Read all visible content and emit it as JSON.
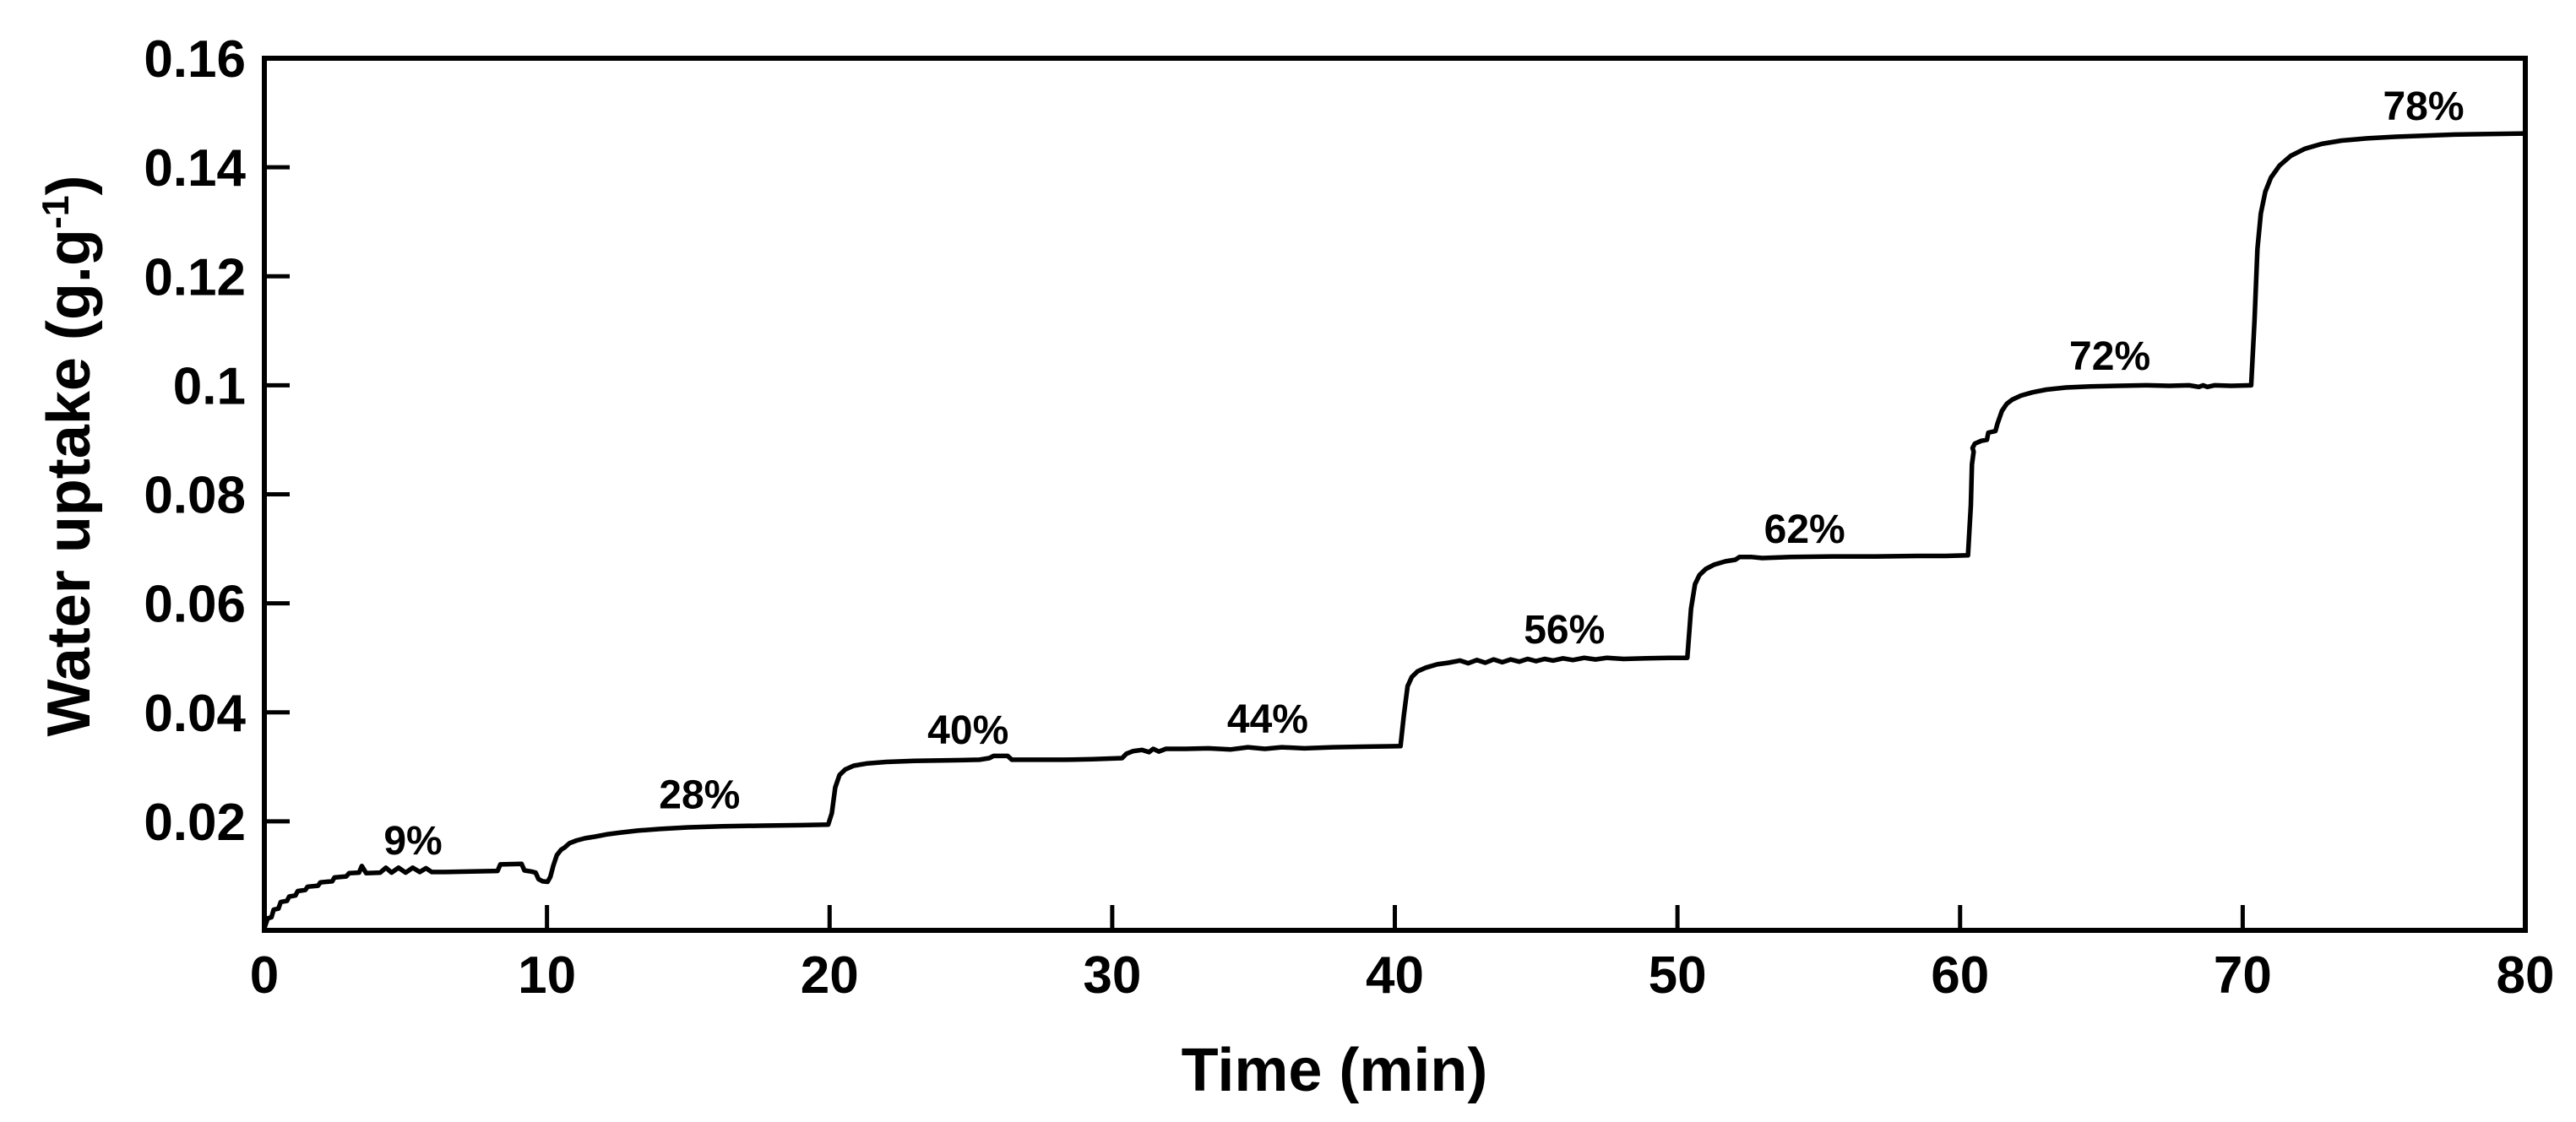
{
  "chart_data": {
    "type": "line",
    "title": "",
    "xlabel": "Time (min)",
    "ylabel_main": "Water uptake (g.g",
    "ylabel_sup": "-1",
    "ylabel_close": ")",
    "xlim": [
      0,
      80
    ],
    "ylim": [
      0,
      0.16
    ],
    "grid": false,
    "legend_position": "none",
    "line_color": "#000000",
    "axis_color": "#000000",
    "background": "#ffffff",
    "x_ticks": [
      {
        "value": 0,
        "label": "0"
      },
      {
        "value": 10,
        "label": "10"
      },
      {
        "value": 20,
        "label": "20"
      },
      {
        "value": 30,
        "label": "30"
      },
      {
        "value": 40,
        "label": "40"
      },
      {
        "value": 50,
        "label": "50"
      },
      {
        "value": 60,
        "label": "60"
      },
      {
        "value": 70,
        "label": "70"
      },
      {
        "value": 80,
        "label": "80"
      }
    ],
    "y_ticks": [
      {
        "value": 0.02,
        "label": "0.02"
      },
      {
        "value": 0.04,
        "label": "0.04"
      },
      {
        "value": 0.06,
        "label": "0.06"
      },
      {
        "value": 0.08,
        "label": "0.08"
      },
      {
        "value": 0.1,
        "label": "0.1"
      },
      {
        "value": 0.12,
        "label": "0.12"
      },
      {
        "value": 0.14,
        "label": "0.14"
      },
      {
        "value": 0.16,
        "label": "0.16"
      }
    ],
    "annotations": [
      {
        "label": "9%",
        "t": 5.26,
        "v": 0.0166
      },
      {
        "label": "28%",
        "t": 15.4,
        "v": 0.025
      },
      {
        "label": "40%",
        "t": 24.9,
        "v": 0.0369
      },
      {
        "label": "44%",
        "t": 35.5,
        "v": 0.0389
      },
      {
        "label": "56%",
        "t": 46.0,
        "v": 0.0553
      },
      {
        "label": "62%",
        "t": 54.5,
        "v": 0.0737
      },
      {
        "label": "72%",
        "t": 65.3,
        "v": 0.1055
      },
      {
        "label": "78%",
        "t": 76.4,
        "v": 0.1513
      }
    ],
    "humidity_step_plateaus": [
      {
        "rh": "9%",
        "time_range": [
          0,
          10
        ],
        "uptake": 0.011
      },
      {
        "rh": "28%",
        "time_range": [
          10,
          20
        ],
        "uptake": 0.0195
      },
      {
        "rh": "40%",
        "time_range": [
          20,
          30
        ],
        "uptake": 0.0313
      },
      {
        "rh": "44%",
        "time_range": [
          30,
          40
        ],
        "uptake": 0.0334
      },
      {
        "rh": "56%",
        "time_range": [
          40,
          50
        ],
        "uptake": 0.0498
      },
      {
        "rh": "62%",
        "time_range": [
          50,
          60
        ],
        "uptake": 0.0685
      },
      {
        "rh": "72%",
        "time_range": [
          60,
          70
        ],
        "uptake": 0.1
      },
      {
        "rh": "78%",
        "time_range": [
          70,
          80
        ],
        "uptake": 0.146
      }
    ],
    "series": [
      {
        "name": "water-uptake-curve",
        "points": [
          [
            0,
            0.0004
          ],
          [
            0.12,
            0.0022
          ],
          [
            0.25,
            0.0024
          ],
          [
            0.33,
            0.0038
          ],
          [
            0.5,
            0.004
          ],
          [
            0.58,
            0.0052
          ],
          [
            0.8,
            0.0054
          ],
          [
            0.88,
            0.0062
          ],
          [
            1.1,
            0.0064
          ],
          [
            1.18,
            0.0072
          ],
          [
            1.45,
            0.0074
          ],
          [
            1.53,
            0.008
          ],
          [
            1.9,
            0.0082
          ],
          [
            1.98,
            0.0088
          ],
          [
            2.4,
            0.009
          ],
          [
            2.48,
            0.0097
          ],
          [
            2.9,
            0.0099
          ],
          [
            3.0,
            0.0105
          ],
          [
            3.35,
            0.0106
          ],
          [
            3.45,
            0.0118
          ],
          [
            3.6,
            0.0105
          ],
          [
            4.1,
            0.0106
          ],
          [
            4.3,
            0.0115
          ],
          [
            4.5,
            0.0106
          ],
          [
            4.75,
            0.0115
          ],
          [
            5.0,
            0.0106
          ],
          [
            5.25,
            0.0115
          ],
          [
            5.5,
            0.0107
          ],
          [
            5.72,
            0.0114
          ],
          [
            5.92,
            0.0107
          ],
          [
            6.4,
            0.0107
          ],
          [
            7.3,
            0.0108
          ],
          [
            8.25,
            0.0109
          ],
          [
            8.35,
            0.0121
          ],
          [
            9.1,
            0.0122
          ],
          [
            9.2,
            0.011
          ],
          [
            9.45,
            0.0108
          ],
          [
            9.6,
            0.0106
          ],
          [
            9.7,
            0.0094
          ],
          [
            9.85,
            0.009
          ],
          [
            10.02,
            0.0089
          ],
          [
            10.12,
            0.0098
          ],
          [
            10.22,
            0.0118
          ],
          [
            10.35,
            0.0138
          ],
          [
            10.5,
            0.0148
          ],
          [
            10.62,
            0.0152
          ],
          [
            10.8,
            0.016
          ],
          [
            11.05,
            0.0165
          ],
          [
            11.35,
            0.0169
          ],
          [
            11.7,
            0.0172
          ],
          [
            12.1,
            0.0176
          ],
          [
            12.55,
            0.0179
          ],
          [
            13.2,
            0.0183
          ],
          [
            14.0,
            0.0186
          ],
          [
            15.0,
            0.0189
          ],
          [
            16.2,
            0.0191
          ],
          [
            17.6,
            0.0192
          ],
          [
            19.0,
            0.0193
          ],
          [
            19.95,
            0.0194
          ],
          [
            20.08,
            0.0215
          ],
          [
            20.2,
            0.0262
          ],
          [
            20.35,
            0.0285
          ],
          [
            20.55,
            0.0295
          ],
          [
            20.85,
            0.0302
          ],
          [
            21.3,
            0.0306
          ],
          [
            22.0,
            0.0309
          ],
          [
            23.0,
            0.0311
          ],
          [
            24.2,
            0.0312
          ],
          [
            25.3,
            0.0313
          ],
          [
            25.65,
            0.0316
          ],
          [
            25.8,
            0.032
          ],
          [
            26.3,
            0.032
          ],
          [
            26.45,
            0.0313
          ],
          [
            27.3,
            0.0313
          ],
          [
            28.3,
            0.0313
          ],
          [
            29.3,
            0.0314
          ],
          [
            30.35,
            0.0316
          ],
          [
            30.5,
            0.0324
          ],
          [
            30.75,
            0.0329
          ],
          [
            31.05,
            0.0331
          ],
          [
            31.3,
            0.0327
          ],
          [
            31.45,
            0.0333
          ],
          [
            31.65,
            0.0328
          ],
          [
            31.9,
            0.0333
          ],
          [
            32.6,
            0.0333
          ],
          [
            33.4,
            0.0334
          ],
          [
            34.2,
            0.0332
          ],
          [
            34.8,
            0.0336
          ],
          [
            35.4,
            0.0333
          ],
          [
            36.0,
            0.0336
          ],
          [
            36.8,
            0.0334
          ],
          [
            37.8,
            0.0336
          ],
          [
            39.0,
            0.0337
          ],
          [
            40.2,
            0.0338
          ],
          [
            40.32,
            0.0395
          ],
          [
            40.45,
            0.0448
          ],
          [
            40.6,
            0.0465
          ],
          [
            40.8,
            0.0475
          ],
          [
            41.1,
            0.0482
          ],
          [
            41.5,
            0.0488
          ],
          [
            41.9,
            0.0491
          ],
          [
            42.3,
            0.0495
          ],
          [
            42.6,
            0.049
          ],
          [
            42.9,
            0.0496
          ],
          [
            43.2,
            0.0491
          ],
          [
            43.5,
            0.0497
          ],
          [
            43.8,
            0.0492
          ],
          [
            44.1,
            0.0497
          ],
          [
            44.4,
            0.0493
          ],
          [
            44.7,
            0.0498
          ],
          [
            45.0,
            0.0494
          ],
          [
            45.3,
            0.0498
          ],
          [
            45.6,
            0.0495
          ],
          [
            45.95,
            0.0499
          ],
          [
            46.3,
            0.0496
          ],
          [
            46.7,
            0.05
          ],
          [
            47.1,
            0.0497
          ],
          [
            47.5,
            0.05
          ],
          [
            48.1,
            0.0498
          ],
          [
            48.9,
            0.0499
          ],
          [
            49.7,
            0.05
          ],
          [
            50.35,
            0.05
          ],
          [
            50.48,
            0.059
          ],
          [
            50.62,
            0.0635
          ],
          [
            50.78,
            0.0652
          ],
          [
            51.0,
            0.0663
          ],
          [
            51.3,
            0.0671
          ],
          [
            51.7,
            0.0677
          ],
          [
            52.05,
            0.068
          ],
          [
            52.2,
            0.0685
          ],
          [
            52.6,
            0.0685
          ],
          [
            53.0,
            0.0683
          ],
          [
            54.0,
            0.0685
          ],
          [
            55.5,
            0.0686
          ],
          [
            57.0,
            0.0686
          ],
          [
            58.5,
            0.0687
          ],
          [
            59.5,
            0.0687
          ],
          [
            60.28,
            0.0688
          ],
          [
            60.38,
            0.078
          ],
          [
            60.42,
            0.0855
          ],
          [
            60.48,
            0.0878
          ],
          [
            60.44,
            0.0885
          ],
          [
            60.52,
            0.0893
          ],
          [
            60.75,
            0.0898
          ],
          [
            60.95,
            0.09
          ],
          [
            61.0,
            0.0913
          ],
          [
            61.25,
            0.0916
          ],
          [
            61.32,
            0.0929
          ],
          [
            61.48,
            0.0953
          ],
          [
            61.65,
            0.0966
          ],
          [
            61.85,
            0.0974
          ],
          [
            62.15,
            0.0981
          ],
          [
            62.55,
            0.0987
          ],
          [
            63.05,
            0.0992
          ],
          [
            63.75,
            0.0996
          ],
          [
            64.6,
            0.0998
          ],
          [
            65.6,
            0.0999
          ],
          [
            66.6,
            0.1
          ],
          [
            67.4,
            0.0999
          ],
          [
            68.1,
            0.1
          ],
          [
            68.45,
            0.0997
          ],
          [
            68.6,
            0.1
          ],
          [
            68.75,
            0.0997
          ],
          [
            69.0,
            0.1
          ],
          [
            69.6,
            0.0999
          ],
          [
            70.3,
            0.1
          ],
          [
            70.42,
            0.112
          ],
          [
            70.52,
            0.125
          ],
          [
            70.64,
            0.1315
          ],
          [
            70.8,
            0.1355
          ],
          [
            71.0,
            0.1381
          ],
          [
            71.3,
            0.1403
          ],
          [
            71.7,
            0.1421
          ],
          [
            72.2,
            0.1434
          ],
          [
            72.8,
            0.1443
          ],
          [
            73.5,
            0.1449
          ],
          [
            74.4,
            0.1453
          ],
          [
            75.4,
            0.1456
          ],
          [
            76.4,
            0.1458
          ],
          [
            77.5,
            0.146
          ],
          [
            78.7,
            0.1461
          ],
          [
            80,
            0.1462
          ]
        ]
      }
    ]
  }
}
